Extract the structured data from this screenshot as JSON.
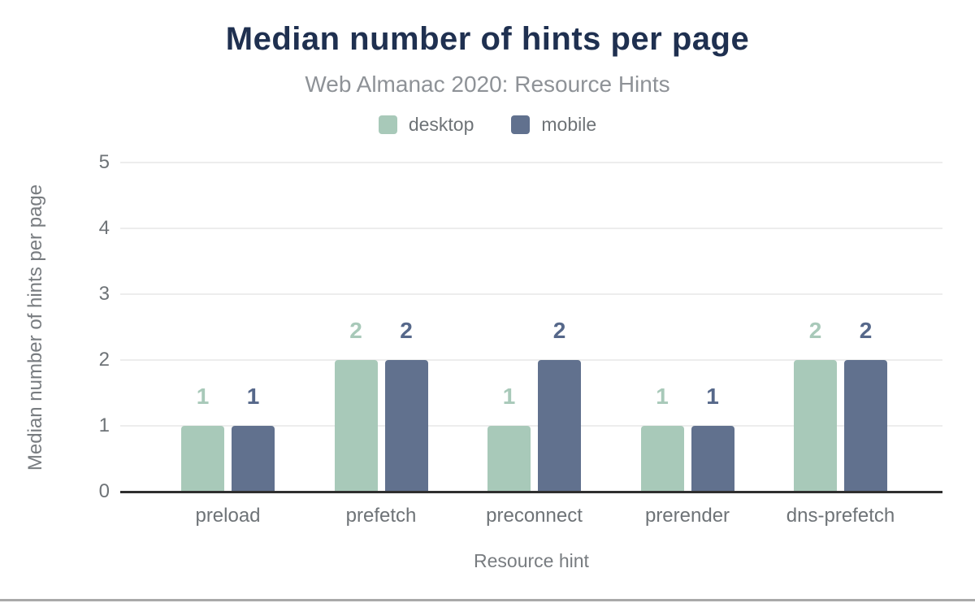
{
  "chart_data": {
    "type": "bar",
    "title": "Median number of hints per page",
    "subtitle": "Web Almanac 2020: Resource Hints",
    "categories": [
      "preload",
      "prefetch",
      "preconnect",
      "prerender",
      "dns-prefetch"
    ],
    "series": [
      {
        "name": "desktop",
        "color": "#a8c9b9",
        "label_color": "#a8c9b9",
        "values": [
          1,
          2,
          1,
          1,
          2
        ]
      },
      {
        "name": "mobile",
        "color": "#61718e",
        "label_color": "#56688a",
        "values": [
          1,
          2,
          2,
          1,
          2
        ]
      }
    ],
    "xlabel": "Resource hint",
    "ylabel": "Median number of hints per page",
    "ylim": [
      0,
      5
    ],
    "yticks": [
      0,
      1,
      2,
      3,
      4,
      5
    ],
    "grid": "horizontal",
    "legend_position": "top",
    "colors": {
      "title_text": "#1f3050",
      "subtitle_text": "#8e9297",
      "tick_text": "#6e7377",
      "axis_title_text": "#787c80",
      "legend_text": "#6e7377",
      "gridline": "#ededed",
      "axis_line": "#2f2f2f",
      "bottom_strip": "#a9a9a9"
    }
  }
}
